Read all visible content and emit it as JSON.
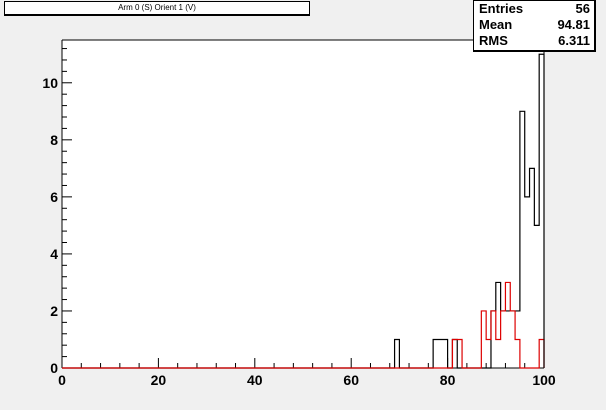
{
  "chart_data": {
    "type": "histogram",
    "title": "Arm 0 (S) Orient 1 (V)",
    "xlim": [
      0,
      100
    ],
    "ylim": [
      0,
      11.5
    ],
    "bin_width": 1,
    "x_ticks": [
      0,
      20,
      40,
      60,
      80,
      100
    ],
    "y_ticks": [
      0,
      2,
      4,
      6,
      8,
      10
    ],
    "grid": false,
    "series": [
      {
        "color": "#000000",
        "bins": [
          {
            "x": 69,
            "y": 1
          },
          {
            "x": 77,
            "y": 1
          },
          {
            "x": 78,
            "y": 1
          },
          {
            "x": 79,
            "y": 1
          },
          {
            "x": 81,
            "y": 1
          },
          {
            "x": 89,
            "y": 2
          },
          {
            "x": 90,
            "y": 3
          },
          {
            "x": 91,
            "y": 2
          },
          {
            "x": 92,
            "y": 2
          },
          {
            "x": 93,
            "y": 2
          },
          {
            "x": 94,
            "y": 2
          },
          {
            "x": 95,
            "y": 9
          },
          {
            "x": 96,
            "y": 6
          },
          {
            "x": 97,
            "y": 7
          },
          {
            "x": 98,
            "y": 5
          },
          {
            "x": 99,
            "y": 11
          }
        ]
      },
      {
        "color": "#dd0000",
        "bins": [
          {
            "x": 81,
            "y": 1
          },
          {
            "x": 82,
            "y": 1
          },
          {
            "x": 87,
            "y": 2
          },
          {
            "x": 88,
            "y": 1
          },
          {
            "x": 89,
            "y": 2
          },
          {
            "x": 90,
            "y": 1
          },
          {
            "x": 91,
            "y": 2
          },
          {
            "x": 92,
            "y": 3
          },
          {
            "x": 93,
            "y": 2
          },
          {
            "x": 94,
            "y": 1
          },
          {
            "x": 99,
            "y": 1
          }
        ]
      }
    ]
  },
  "stats": {
    "entries_label": "Entries",
    "entries_value": "56",
    "mean_label": "Mean",
    "mean_value": "94.81",
    "rms_label": "RMS",
    "rms_value": "6.311"
  }
}
